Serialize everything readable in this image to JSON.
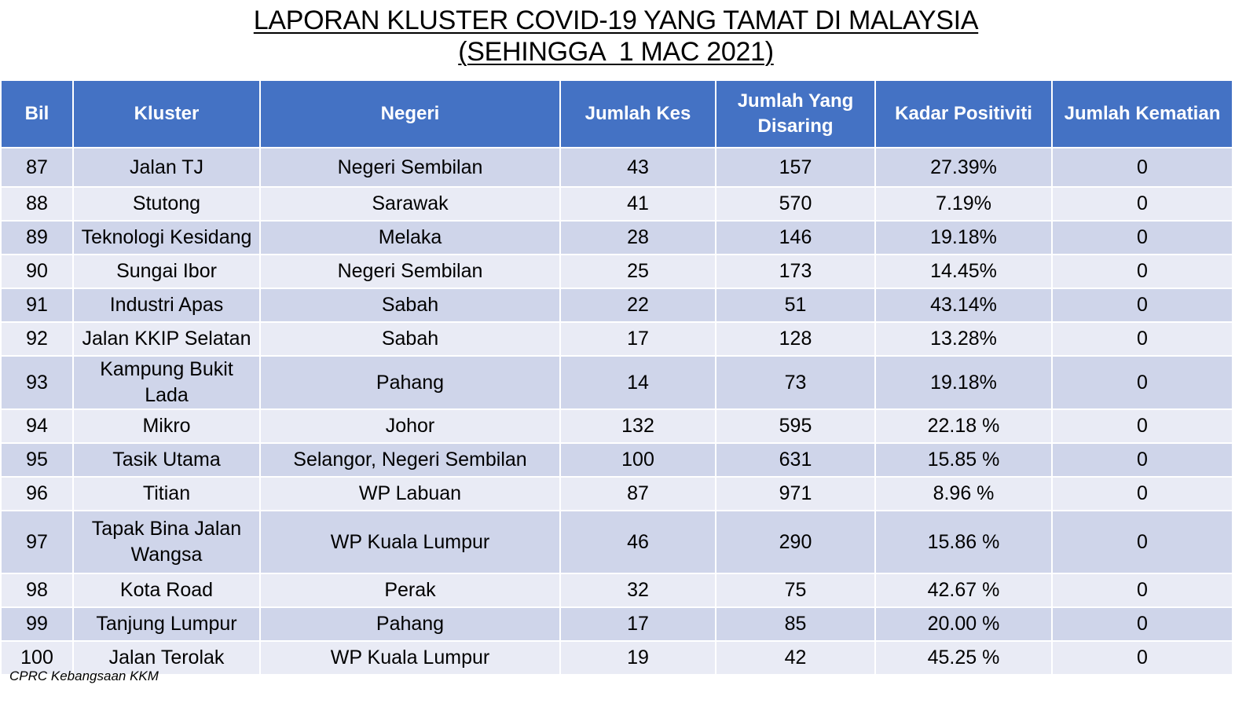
{
  "title": {
    "line1": "LAPORAN KLUSTER COVID-19 YANG TAMAT DI MALAYSIA",
    "line2": "(SEHINGGA  1 MAC 2021)"
  },
  "colors": {
    "header_bg": "#4472c4",
    "row_dark": "#cfd5ea",
    "row_light": "#e9ebf5"
  },
  "table": {
    "headers": [
      "Bil",
      "Kluster",
      "Negeri",
      "Jumlah Kes",
      "Jumlah Yang Disaring",
      "Kadar Positiviti",
      "Jumlah Kematian"
    ],
    "rows": [
      [
        "87",
        "Jalan TJ",
        "Negeri Sembilan",
        "43",
        "157",
        "27.39%",
        "0"
      ],
      [
        "88",
        "Stutong",
        "Sarawak",
        "41",
        "570",
        "7.19%",
        "0"
      ],
      [
        "89",
        "Teknologi Kesidang",
        "Melaka",
        "28",
        "146",
        "19.18%",
        "0"
      ],
      [
        "90",
        "Sungai Ibor",
        "Negeri Sembilan",
        "25",
        "173",
        "14.45%",
        "0"
      ],
      [
        "91",
        "Industri Apas",
        "Sabah",
        "22",
        "51",
        "43.14%",
        "0"
      ],
      [
        "92",
        "Jalan KKIP Selatan",
        "Sabah",
        "17",
        "128",
        "13.28%",
        "0"
      ],
      [
        "93",
        "Kampung Bukit Lada",
        "Pahang",
        "14",
        "73",
        "19.18%",
        "0"
      ],
      [
        "94",
        "Mikro",
        "Johor",
        "132",
        "595",
        "22.18 %",
        "0"
      ],
      [
        "95",
        "Tasik Utama",
        "Selangor, Negeri Sembilan",
        "100",
        "631",
        "15.85 %",
        "0"
      ],
      [
        "96",
        "Titian",
        "WP Labuan",
        "87",
        "971",
        "8.96 %",
        "0"
      ],
      [
        "97",
        "Tapak Bina Jalan Wangsa",
        "WP Kuala Lumpur",
        "46",
        "290",
        "15.86 %",
        "0"
      ],
      [
        "98",
        "Kota Road",
        "Perak",
        "32",
        "75",
        "42.67 %",
        "0"
      ],
      [
        "99",
        "Tanjung Lumpur",
        "Pahang",
        "17",
        "85",
        "20.00 %",
        "0"
      ],
      [
        "100",
        "Jalan Terolak",
        "WP Kuala Lumpur",
        "19",
        "42",
        "45.25 %",
        "0"
      ]
    ]
  },
  "footer": {
    "source": "CPRC Kebangsaan KKM"
  }
}
